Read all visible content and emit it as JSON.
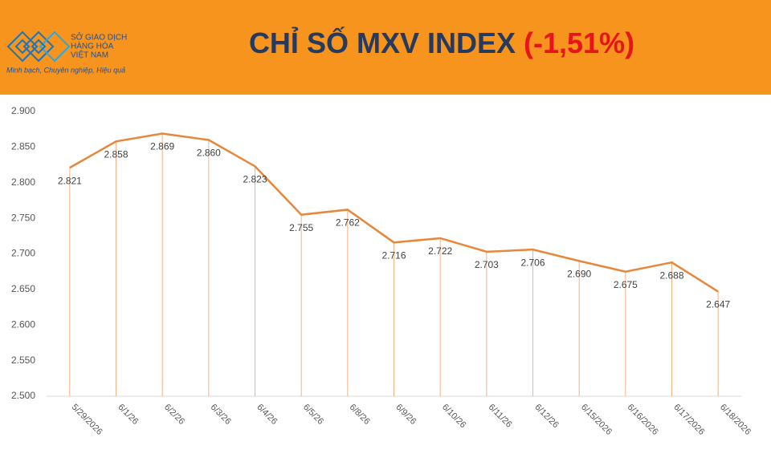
{
  "logo": {
    "name_line1": "SỞ GIAO DỊCH",
    "name_line2": "HÀNG HÓA",
    "name_line3": "VIỆT NAM",
    "slogan": "Minh bạch, Chuyên nghiệp, Hiệu quả"
  },
  "chart_data": {
    "type": "line",
    "title": "CHỈ SỐ MXV INDEX",
    "title_change": "(-1,51%)",
    "categories": [
      "5/29/2026",
      "6/1/26",
      "6/2/26",
      "6/3/26",
      "6/4/26",
      "6/5/26",
      "6/8/26",
      "6/9/26",
      "6/10/26",
      "6/11/26",
      "6/12/26",
      "6/15/2026",
      "6/16/2026",
      "6/17/2026",
      "6/18/2026"
    ],
    "values": [
      2821,
      2858,
      2869,
      2860,
      2823,
      2755,
      2762,
      2716,
      2722,
      2703,
      2706,
      2690,
      2675,
      2688,
      2647
    ],
    "value_labels": [
      "2.821",
      "2.858",
      "2.869",
      "2.860",
      "2.823",
      "2.755",
      "2.762",
      "2.716",
      "2.722",
      "2.703",
      "2.706",
      "2.690",
      "2.675",
      "2.688",
      "2.647"
    ],
    "color": "#e8873a",
    "ylim": [
      2500,
      2900
    ],
    "yticks": [
      {
        "value": 2500,
        "label": "2.500"
      },
      {
        "value": 2550,
        "label": "2.550"
      },
      {
        "value": 2600,
        "label": "2.600"
      },
      {
        "value": 2650,
        "label": "2.650"
      },
      {
        "value": 2700,
        "label": "2.700"
      },
      {
        "value": 2750,
        "label": "2.750"
      },
      {
        "value": 2800,
        "label": "2.800"
      },
      {
        "value": 2850,
        "label": "2.850"
      },
      {
        "value": 2900,
        "label": "2.900"
      }
    ]
  }
}
